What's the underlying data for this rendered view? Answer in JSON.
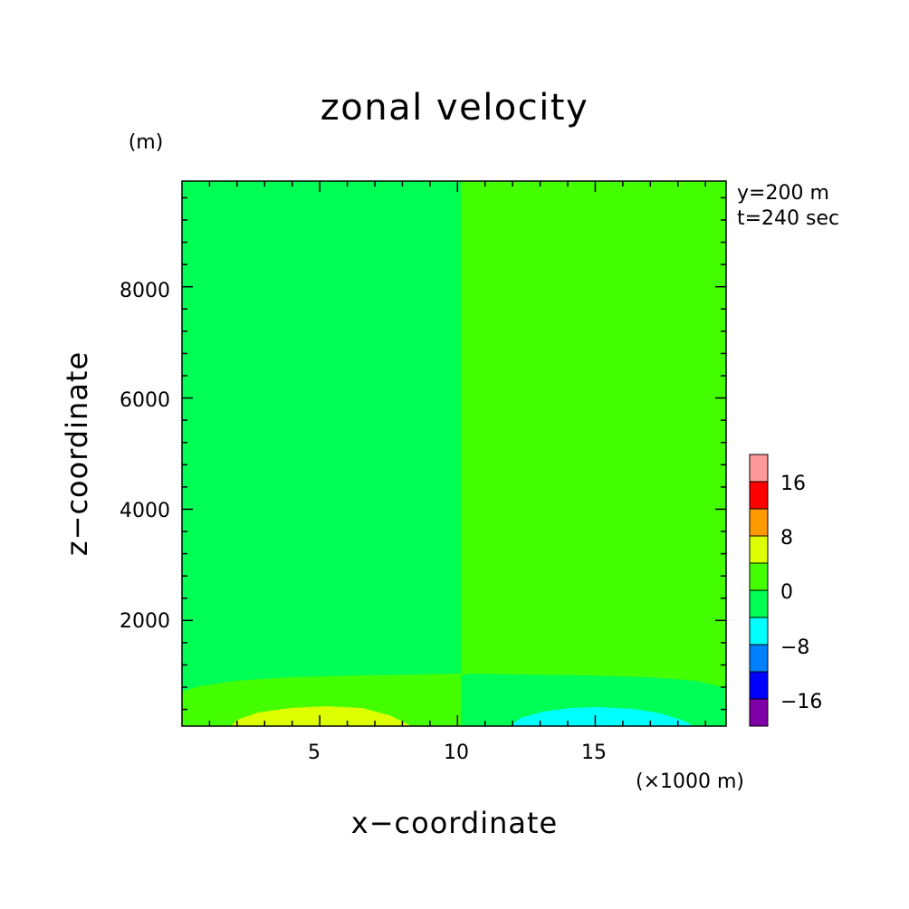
{
  "chart_data": {
    "type": "heatmap",
    "title": "zonal velocity",
    "xlabel": "x−coordinate",
    "ylabel": "z−coordinate",
    "x_unit": "(×1000 m)",
    "y_unit": "(m)",
    "annotations": [
      "y=200 m",
      "t=240 sec"
    ],
    "xlim": [
      0,
      19.75
    ],
    "ylim": [
      100,
      9900
    ],
    "x_ticks": [
      5,
      10,
      15
    ],
    "x_tick_labels": [
      "5",
      "10",
      "15"
    ],
    "y_ticks": [
      2000,
      4000,
      6000,
      8000
    ],
    "y_tick_labels": [
      "2000",
      "4000",
      "6000",
      "8000"
    ],
    "colorbar": {
      "levels": [
        -20,
        -16,
        -12,
        -8,
        -4,
        0,
        4,
        8,
        12,
        16,
        20
      ],
      "colors": [
        "#7f00a8",
        "#0000ff",
        "#0080ff",
        "#00ffff",
        "#00ff55",
        "#44ff00",
        "#ddff00",
        "#ff9900",
        "#ff0000",
        "#ff9999"
      ],
      "tick_labels": [
        "−16",
        "−8",
        "0",
        "8",
        "16"
      ],
      "tick_values": [
        -16,
        -8,
        0,
        8,
        16
      ]
    },
    "regions": [
      {
        "value_range": [
          -4,
          0
        ],
        "color": "#00ff55",
        "description": "left half"
      },
      {
        "value_range": [
          0,
          4
        ],
        "color": "#44ff00",
        "description": "right half"
      },
      {
        "value_range": [
          0,
          4
        ],
        "color": "#44ff00",
        "description": "left near-surface band"
      },
      {
        "value_range": [
          4,
          8
        ],
        "color": "#ddff00",
        "description": "left surface maximum near x=5.5"
      },
      {
        "value_range": [
          -4,
          0
        ],
        "color": "#00ff55",
        "description": "right near-surface band"
      },
      {
        "value_range": [
          -8,
          -4
        ],
        "color": "#00ffff",
        "description": "right surface minimum near x=14.8"
      }
    ]
  }
}
